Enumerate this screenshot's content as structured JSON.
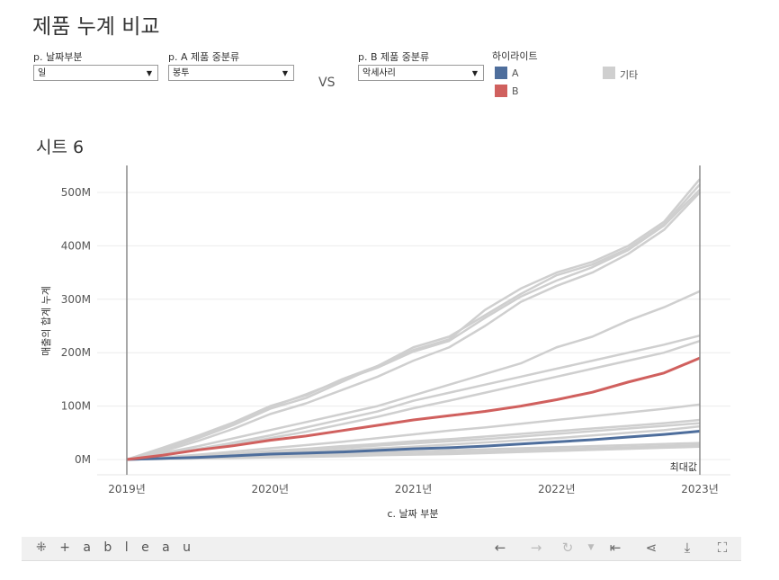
{
  "title": "제품 누계 비교",
  "filters": {
    "date_part": {
      "label": "p. 날짜부분",
      "value": "일"
    },
    "a_category": {
      "label": "p. A 제품 중분류",
      "value": "봉투"
    },
    "vs": "VS",
    "b_category": {
      "label": "p. B 제품 중분류",
      "value": "악세사리"
    }
  },
  "legend": {
    "title": "하이라이트",
    "items": [
      {
        "label": "A",
        "color": "#4e6e9c"
      },
      {
        "label": "B",
        "color": "#d0605e"
      },
      {
        "label": "기타",
        "color": "#cfcfcf"
      }
    ]
  },
  "sheet_title": "시트 6",
  "chart_data": {
    "type": "line",
    "xlabel": "c. 날짜 부분",
    "ylabel": "매출의 합계 누계",
    "x_ticks": [
      "2019년",
      "2020년",
      "2021년",
      "2022년",
      "2023년"
    ],
    "x_range": [
      2019,
      2023
    ],
    "y_ticks": [
      "0M",
      "100M",
      "200M",
      "300M",
      "400M",
      "500M"
    ],
    "ylim": [
      0,
      530
    ],
    "grid": true,
    "reference_line_label": "최대값",
    "x": [
      2019,
      2019.25,
      2019.5,
      2019.75,
      2020,
      2020.25,
      2020.5,
      2020.75,
      2021,
      2021.25,
      2021.5,
      2021.75,
      2022,
      2022.25,
      2022.5,
      2022.75,
      2023
    ],
    "series": [
      {
        "name": "A",
        "group": "A",
        "values": [
          0,
          2,
          4,
          7,
          10,
          12,
          14,
          17,
          20,
          22,
          25,
          29,
          33,
          37,
          42,
          47,
          53
        ]
      },
      {
        "name": "B",
        "group": "B",
        "values": [
          0,
          8,
          18,
          26,
          36,
          44,
          54,
          64,
          74,
          82,
          90,
          100,
          112,
          126,
          145,
          162,
          190
        ]
      },
      {
        "group": "기타",
        "values": [
          0,
          22,
          45,
          70,
          100,
          120,
          150,
          175,
          205,
          225,
          280,
          320,
          350,
          370,
          400,
          445,
          525
        ]
      },
      {
        "group": "기타",
        "values": [
          0,
          18,
          40,
          65,
          95,
          115,
          145,
          175,
          210,
          230,
          270,
          310,
          345,
          365,
          395,
          440,
          515
        ]
      },
      {
        "group": "기타",
        "values": [
          0,
          20,
          42,
          68,
          98,
          122,
          148,
          172,
          202,
          222,
          265,
          305,
          335,
          360,
          392,
          438,
          505
        ]
      },
      {
        "group": "기타",
        "values": [
          0,
          15,
          35,
          58,
          85,
          105,
          130,
          155,
          185,
          210,
          250,
          295,
          325,
          350,
          385,
          430,
          500
        ]
      },
      {
        "group": "기타",
        "values": [
          0,
          12,
          25,
          40,
          55,
          70,
          85,
          100,
          120,
          140,
          160,
          180,
          210,
          230,
          260,
          285,
          315
        ]
      },
      {
        "group": "기타",
        "values": [
          0,
          10,
          20,
          32,
          45,
          60,
          75,
          90,
          110,
          125,
          140,
          155,
          170,
          185,
          200,
          215,
          232
        ]
      },
      {
        "group": "기타",
        "values": [
          0,
          8,
          18,
          28,
          40,
          52,
          66,
          80,
          96,
          110,
          125,
          140,
          155,
          170,
          185,
          200,
          222
        ]
      },
      {
        "group": "기타",
        "values": [
          0,
          4,
          9,
          15,
          21,
          27,
          33,
          40,
          47,
          54,
          60,
          67,
          74,
          81,
          88,
          95,
          103
        ]
      },
      {
        "group": "기타",
        "values": [
          0,
          3,
          7,
          11,
          16,
          20,
          25,
          29,
          34,
          38,
          43,
          48,
          53,
          58,
          63,
          68,
          74
        ]
      },
      {
        "group": "기타",
        "values": [
          0,
          3,
          6,
          10,
          14,
          18,
          22,
          26,
          30,
          34,
          38,
          43,
          48,
          53,
          58,
          63,
          68
        ]
      },
      {
        "group": "기타",
        "values": [
          0,
          2,
          5,
          8,
          11,
          14,
          18,
          21,
          24,
          28,
          32,
          36,
          40,
          45,
          50,
          55,
          62
        ]
      },
      {
        "group": "기타",
        "values": [
          0,
          1,
          3,
          5,
          7,
          9,
          11,
          13,
          15,
          17,
          19,
          21,
          23,
          25,
          27,
          29,
          31
        ]
      },
      {
        "group": "기타",
        "values": [
          0,
          1,
          2,
          4,
          5,
          7,
          8,
          10,
          11,
          13,
          15,
          17,
          19,
          21,
          23,
          25,
          27
        ]
      },
      {
        "group": "기타",
        "values": [
          0,
          1,
          2,
          3,
          4,
          5,
          6,
          8,
          9,
          10,
          12,
          14,
          16,
          18,
          20,
          22,
          24
        ]
      }
    ]
  },
  "toolbar": {
    "brand": "+ a b l e a u",
    "icons": [
      "undo-icon",
      "redo-icon",
      "revert-icon",
      "dropdown-icon",
      "reset-icon",
      "share-icon",
      "download-icon",
      "fullscreen-icon"
    ]
  }
}
